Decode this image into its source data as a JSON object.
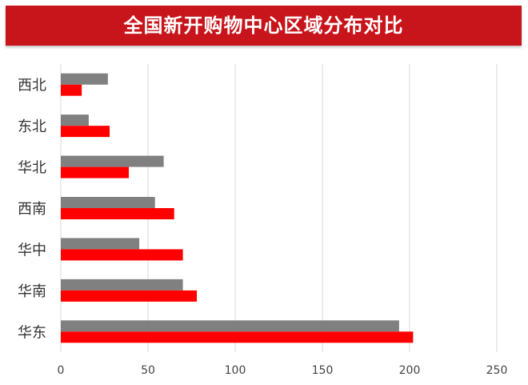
{
  "title": "全国新开购物中心区域分布对比",
  "colors": {
    "series_a": "#808080",
    "series_b": "#ff0000",
    "title_bg": "#c8141b"
  },
  "chart_data": {
    "type": "bar",
    "orientation": "horizontal",
    "title": "全国新开购物中心区域分布对比",
    "categories": [
      "西北",
      "东北",
      "华北",
      "西南",
      "华中",
      "华南",
      "华东"
    ],
    "series": [
      {
        "values": [
          27,
          16,
          59,
          54,
          45,
          70,
          194
        ]
      },
      {
        "values": [
          12,
          28,
          39,
          65,
          70,
          78,
          202
        ]
      }
    ],
    "xlim": [
      0,
      250
    ],
    "xticks": [
      0,
      50,
      100,
      150,
      200,
      250
    ],
    "grid": true,
    "legend": "none"
  }
}
